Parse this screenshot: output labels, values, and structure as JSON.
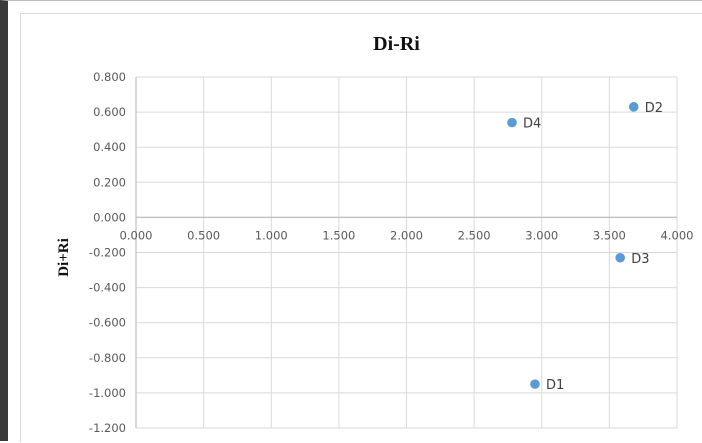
{
  "chart_data": {
    "type": "scatter",
    "title": "Di-Ri",
    "xlabel": "",
    "ylabel": "Di+Ri",
    "xlim": [
      0,
      4
    ],
    "ylim": [
      -1.2,
      0.8
    ],
    "x_ticks": [
      "0.000",
      "0.500",
      "1.000",
      "1.500",
      "2.000",
      "2.500",
      "3.000",
      "3.500",
      "4.000"
    ],
    "y_ticks": [
      "0.800",
      "0.600",
      "0.400",
      "0.200",
      "0.000",
      "-0.200",
      "-0.400",
      "-0.600",
      "-0.800",
      "-1.000",
      "-1.200"
    ],
    "grid": true,
    "marker_color": "#5b9bd5",
    "points": [
      {
        "label": "D1",
        "x": 2.95,
        "y": -0.95
      },
      {
        "label": "D2",
        "x": 3.68,
        "y": 0.63
      },
      {
        "label": "D3",
        "x": 3.58,
        "y": -0.23
      },
      {
        "label": "D4",
        "x": 2.78,
        "y": 0.54
      }
    ]
  }
}
